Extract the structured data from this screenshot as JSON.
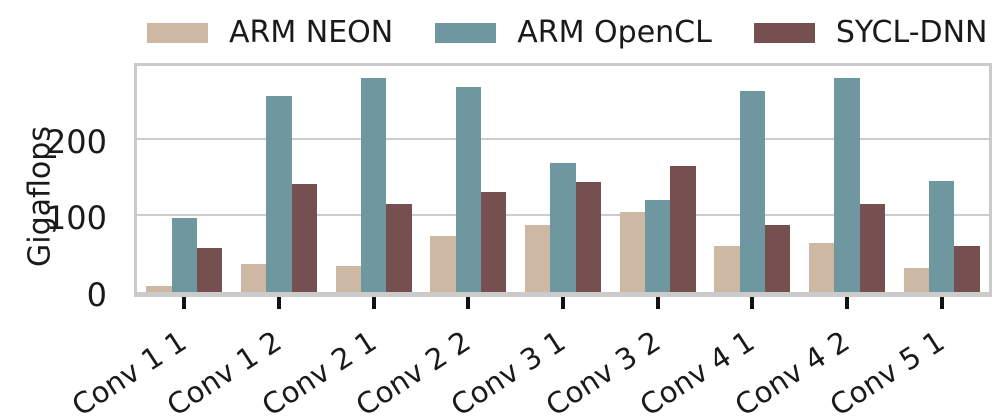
{
  "figure": {
    "background": "#ffffff",
    "text_color": "#1a1a1a",
    "grid_color": "#cccccc",
    "spine_color": "#cbcbcb",
    "tick_mark_color": "#111111"
  },
  "chart_data": {
    "type": "bar",
    "title": "",
    "xlabel": "",
    "ylabel": "Gigaflops",
    "categories": [
      "Conv 1 1",
      "Conv 1 2",
      "Conv 2 1",
      "Conv 2 2",
      "Conv 3 1",
      "Conv 3 2",
      "Conv 4 1",
      "Conv 4 2",
      "Conv 5 1"
    ],
    "series": [
      {
        "name": "ARM NEON",
        "color": "#ccb8a3",
        "values": [
          8,
          36,
          34,
          73,
          88,
          104,
          60,
          64,
          32
        ]
      },
      {
        "name": "ARM OpenCL",
        "color": "#6e97a0",
        "values": [
          96,
          256,
          280,
          267,
          168,
          120,
          263,
          280,
          145
        ]
      },
      {
        "name": "SYCL-DNN",
        "color": "#764f51",
        "values": [
          58,
          141,
          115,
          131,
          144,
          164,
          88,
          115,
          60
        ]
      }
    ],
    "ylim": [
      0,
      295
    ],
    "yticks": [
      0,
      100,
      200
    ],
    "grid": "horizontal",
    "legend_position": "top",
    "bar_group_width_fraction": 0.8,
    "xtick_label_rotation_deg": -33
  }
}
